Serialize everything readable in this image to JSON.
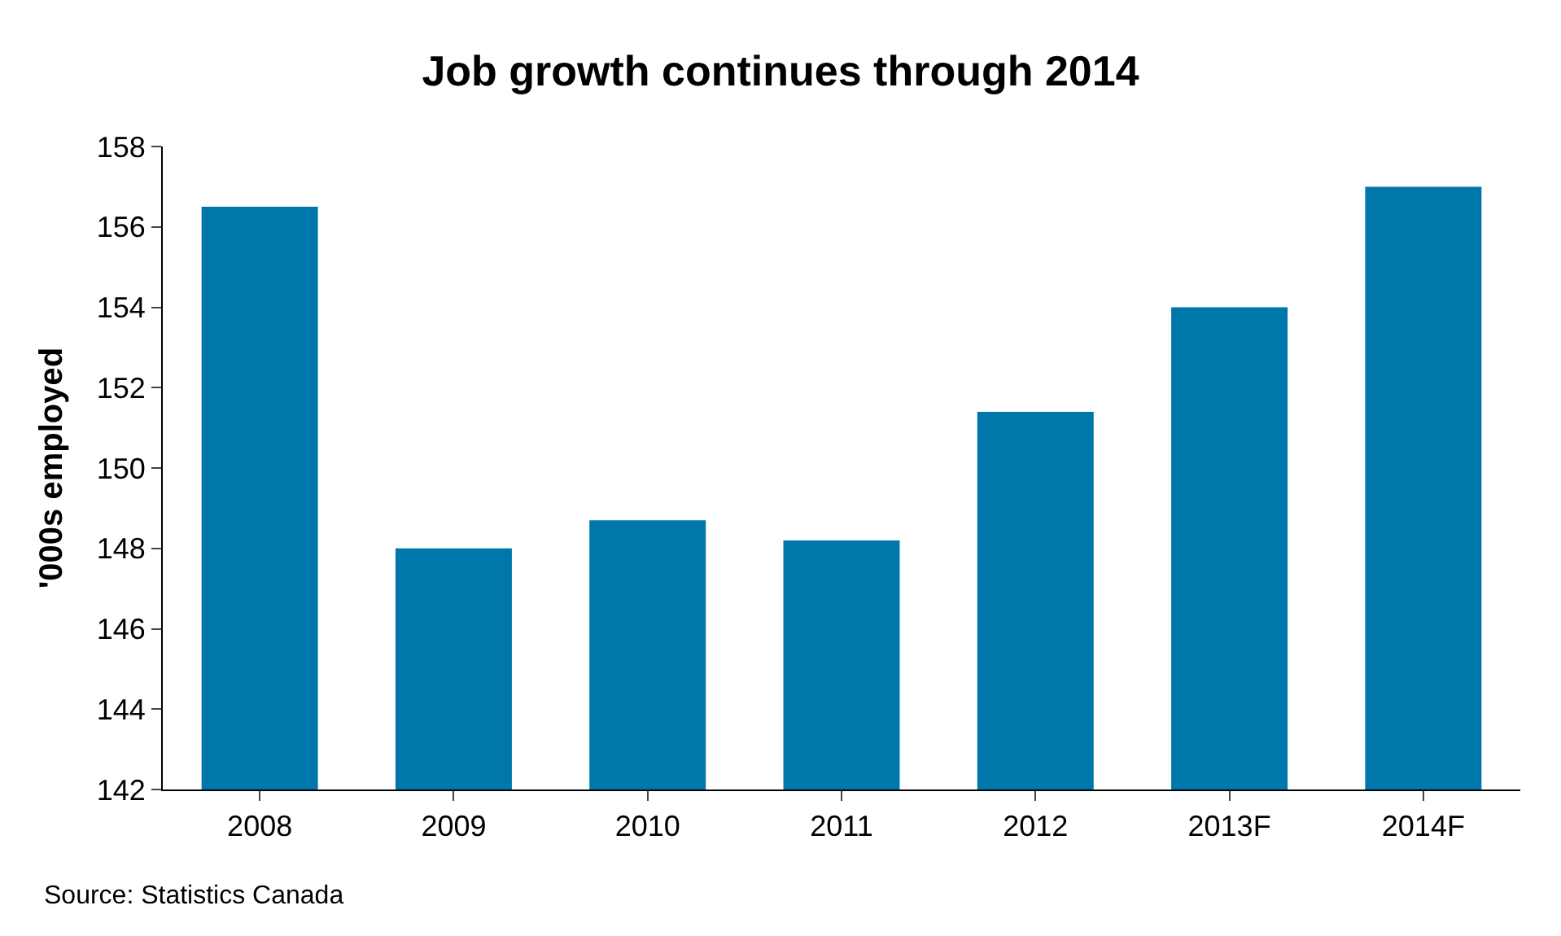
{
  "chart_data": {
    "type": "bar",
    "title": "Job growth continues through 2014",
    "ylabel": "'000s employed",
    "categories": [
      "2008",
      "2009",
      "2010",
      "2011",
      "2012",
      "2013F",
      "2014F"
    ],
    "values": [
      156.5,
      148.0,
      148.7,
      148.2,
      151.4,
      154.0,
      157.0
    ],
    "color": "#0077aa",
    "ylim": [
      142,
      158
    ],
    "yticks": [
      142,
      144,
      146,
      148,
      150,
      152,
      154,
      156,
      158
    ],
    "annotations": [
      "Source: Statistics Canada"
    ]
  }
}
